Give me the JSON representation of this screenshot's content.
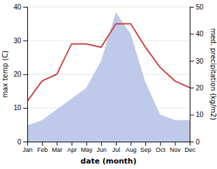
{
  "chart_data": {
    "type": "line",
    "categories": [
      "Jan",
      "Feb",
      "Mar",
      "Apr",
      "May",
      "Jun",
      "Jul",
      "Aug",
      "Sep",
      "Oct",
      "Nov",
      "Dec"
    ],
    "series": [
      {
        "type": "area",
        "axis": "y2",
        "color": "#b8c4e8",
        "values": [
          6,
          8,
          12,
          16,
          20,
          30,
          48,
          40,
          22,
          10,
          8,
          8
        ]
      },
      {
        "type": "line",
        "color": "#cc4444",
        "values": [
          12,
          18,
          20,
          29,
          29,
          28,
          35,
          35,
          28,
          22,
          18,
          16
        ]
      }
    ],
    "xlabel": "date (month)",
    "ylabel": "max temp (C)",
    "y2label": "med. precipitation (kg/m2)",
    "ylim": [
      0,
      40
    ],
    "yticks": [
      0,
      10,
      20,
      30,
      40
    ],
    "y2lim": [
      0,
      50
    ],
    "y2ticks": [
      0,
      10,
      20,
      30,
      40,
      50
    ],
    "grid": true
  }
}
